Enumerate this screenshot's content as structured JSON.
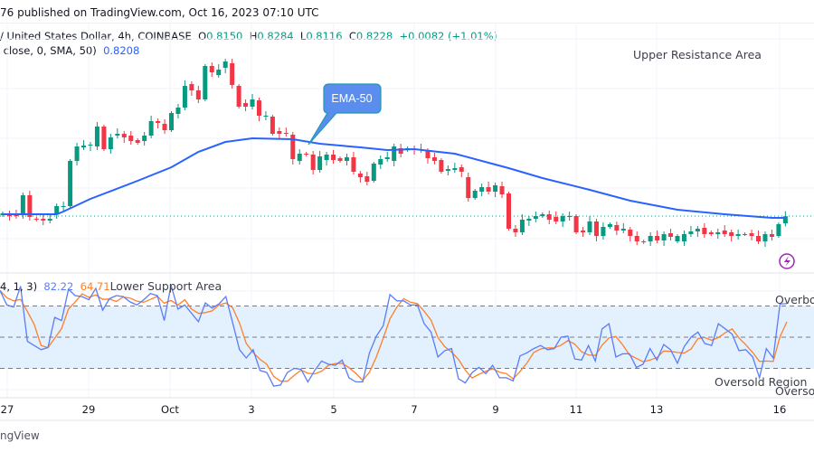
{
  "header": {
    "published": "76 published on TradingView.com, Oct 16, 2023 07:10 UTC",
    "symbol": "/ United States Dollar, 4h, COINBASE",
    "ohlc": {
      "o_label": "O",
      "o": "0.8150",
      "h_label": "H",
      "h": "0.8284",
      "l_label": "L",
      "l": "0.8116",
      "c_label": "C",
      "c": "0.8228",
      "change": "+0.0082 (+1.01%)"
    },
    "ma_legend": "close, 0, SMA, 50)",
    "ma_value": "0.8208"
  },
  "annotations": {
    "upper_resistance": "Upper Resistance Area",
    "ema_callout": "EMA-50",
    "lower_support": "Lower Support Area",
    "overbought": "Overbou",
    "oversold_region": "Oversold Region",
    "oversold": "Oversol"
  },
  "stoch_legend": {
    "params": "4, 1, 3)",
    "k_value": "82.22",
    "d_value": "64.71"
  },
  "footer": {
    "brand": "ngView"
  },
  "icons": {
    "alert": "lightning-icon"
  },
  "colors": {
    "up": "#089981",
    "down": "#f23645",
    "ema": "#2962ff",
    "k": "#5b7cf7",
    "d": "#ff7f2a",
    "band": "#e3f0fd",
    "callout": "#5b8def"
  },
  "chart_data": [
    {
      "type": "candlestick",
      "interval": "4h",
      "x_tick_labels": [
        "27",
        "29",
        "Oct",
        "3",
        "5",
        "7",
        "9",
        "11",
        "13",
        "16"
      ],
      "current_price": 0.8228,
      "last_candle": {
        "o": 0.815,
        "h": 0.8284,
        "l": 0.8116,
        "c": 0.8228
      },
      "candles_oc": [
        [
          0.824,
          0.826
        ],
        [
          0.825,
          0.823
        ],
        [
          0.824,
          0.823
        ],
        [
          0.826,
          0.846
        ],
        [
          0.846,
          0.822
        ],
        [
          0.82,
          0.819
        ],
        [
          0.82,
          0.818
        ],
        [
          0.818,
          0.82
        ],
        [
          0.826,
          0.834
        ],
        [
          0.833,
          0.834
        ],
        [
          0.834,
          0.884
        ],
        [
          0.884,
          0.9
        ],
        [
          0.899,
          0.901
        ],
        [
          0.901,
          0.902
        ],
        [
          0.9,
          0.922
        ],
        [
          0.922,
          0.897
        ],
        [
          0.897,
          0.91
        ],
        [
          0.912,
          0.914
        ],
        [
          0.914,
          0.91
        ],
        [
          0.912,
          0.906
        ],
        [
          0.907,
          0.904
        ],
        [
          0.906,
          0.912
        ],
        [
          0.912,
          0.928
        ],
        [
          0.928,
          0.926
        ],
        [
          0.925,
          0.918
        ],
        [
          0.918,
          0.937
        ],
        [
          0.936,
          0.943
        ],
        [
          0.943,
          0.967
        ],
        [
          0.969,
          0.962
        ],
        [
          0.962,
          0.952
        ],
        [
          0.952,
          0.989
        ],
        [
          0.989,
          0.982
        ],
        [
          0.979,
          0.985
        ],
        [
          0.987,
          0.994
        ],
        [
          0.992,
          0.968
        ],
        [
          0.967,
          0.944
        ],
        [
          0.948,
          0.944
        ],
        [
          0.944,
          0.952
        ],
        [
          0.951,
          0.934
        ],
        [
          0.933,
          0.934
        ],
        [
          0.933,
          0.914
        ],
        [
          0.917,
          0.914
        ],
        [
          0.915,
          0.914
        ],
        [
          0.913,
          0.886
        ],
        [
          0.884,
          0.892
        ],
        [
          0.892,
          0.891
        ],
        [
          0.891,
          0.874
        ],
        [
          0.874,
          0.889
        ],
        [
          0.885,
          0.891
        ],
        [
          0.891,
          0.885
        ],
        [
          0.887,
          0.884
        ],
        [
          0.884,
          0.888
        ],
        [
          0.888,
          0.872
        ],
        [
          0.87,
          0.866
        ],
        [
          0.867,
          0.861
        ],
        [
          0.862,
          0.881
        ],
        [
          0.88,
          0.886
        ],
        [
          0.886,
          0.888
        ],
        [
          0.884,
          0.9
        ],
        [
          0.898,
          0.892
        ],
        [
          0.896,
          0.898
        ],
        [
          0.897,
          0.896
        ],
        [
          0.897,
          0.896
        ],
        [
          0.895,
          0.887
        ],
        [
          0.888,
          0.884
        ],
        [
          0.885,
          0.872
        ],
        [
          0.873,
          0.875
        ],
        [
          0.874,
          0.876
        ],
        [
          0.877,
          0.872
        ],
        [
          0.866,
          0.843
        ],
        [
          0.843,
          0.851
        ],
        [
          0.85,
          0.855
        ],
        [
          0.855,
          0.85
        ],
        [
          0.85,
          0.857
        ],
        [
          0.856,
          0.847
        ],
        [
          0.848,
          0.809
        ],
        [
          0.809,
          0.805
        ],
        [
          0.805,
          0.819
        ],
        [
          0.818,
          0.82
        ],
        [
          0.82,
          0.823
        ],
        [
          0.823,
          0.825
        ],
        [
          0.825,
          0.819
        ],
        [
          0.822,
          0.817
        ],
        [
          0.817,
          0.823
        ],
        [
          0.822,
          0.823
        ],
        [
          0.823,
          0.805
        ],
        [
          0.807,
          0.805
        ],
        [
          0.805,
          0.817
        ],
        [
          0.817,
          0.801
        ],
        [
          0.801,
          0.811
        ],
        [
          0.811,
          0.814
        ],
        [
          0.813,
          0.807
        ],
        [
          0.807,
          0.809
        ],
        [
          0.808,
          0.801
        ],
        [
          0.801,
          0.795
        ],
        [
          0.795,
          0.794
        ],
        [
          0.795,
          0.801
        ],
        [
          0.801,
          0.796
        ],
        [
          0.796,
          0.803
        ],
        [
          0.804,
          0.8
        ],
        [
          0.795,
          0.801
        ],
        [
          0.795,
          0.803
        ],
        [
          0.803,
          0.806
        ],
        [
          0.806,
          0.809
        ],
        [
          0.81,
          0.803
        ],
        [
          0.805,
          0.803
        ],
        [
          0.803,
          0.805
        ],
        [
          0.807,
          0.803
        ],
        [
          0.805,
          0.801
        ],
        [
          0.801,
          0.803
        ],
        [
          0.803,
          0.803
        ],
        [
          0.804,
          0.801
        ],
        [
          0.801,
          0.795
        ],
        [
          0.795,
          0.803
        ],
        [
          0.803,
          0.8
        ],
        [
          0.801,
          0.814
        ],
        [
          0.815,
          0.8228
        ]
      ],
      "ema50_points": [
        [
          0,
          0.825
        ],
        [
          8,
          0.825
        ],
        [
          9,
          0.828
        ],
        [
          13,
          0.842
        ],
        [
          20,
          0.862
        ],
        [
          25,
          0.877
        ],
        [
          29,
          0.894
        ],
        [
          33,
          0.905
        ],
        [
          37,
          0.909
        ],
        [
          43,
          0.908
        ],
        [
          47,
          0.903
        ],
        [
          53,
          0.899
        ],
        [
          57,
          0.896
        ],
        [
          61,
          0.897
        ],
        [
          67,
          0.892
        ],
        [
          72,
          0.882
        ],
        [
          75,
          0.876
        ],
        [
          80,
          0.865
        ],
        [
          87,
          0.852
        ],
        [
          93,
          0.84
        ],
        [
          100,
          0.83
        ],
        [
          107,
          0.825
        ],
        [
          114,
          0.821
        ],
        [
          116,
          0.821
        ]
      ]
    },
    {
      "type": "line",
      "indicator": "Stochastic",
      "ylim": [
        0,
        100
      ],
      "levels": [
        80,
        50,
        20
      ],
      "k": [
        95,
        81,
        79,
        99,
        46,
        42,
        38,
        40,
        69,
        66,
        96,
        90,
        89,
        86,
        97,
        76,
        87,
        90,
        89,
        84,
        81,
        86,
        92,
        90,
        66,
        100,
        77,
        81,
        73,
        65,
        83,
        78,
        82,
        89,
        64,
        38,
        30,
        38,
        18,
        16,
        3,
        4,
        16,
        20,
        19,
        7,
        18,
        27,
        24,
        23,
        28,
        11,
        7,
        7,
        35,
        51,
        61,
        91,
        85,
        85,
        81,
        81,
        63,
        55,
        31,
        37,
        39,
        10,
        6,
        16,
        21,
        15,
        23,
        11,
        11,
        8,
        32,
        35,
        39,
        42,
        38,
        39,
        50,
        51,
        29,
        28,
        42,
        27,
        58,
        63,
        31,
        34,
        34,
        21,
        24,
        39,
        28,
        43,
        38,
        25,
        41,
        50,
        55,
        44,
        42,
        63,
        58,
        53,
        37,
        38,
        31,
        11,
        39,
        30,
        82,
        82.22
      ]
    }
  ]
}
